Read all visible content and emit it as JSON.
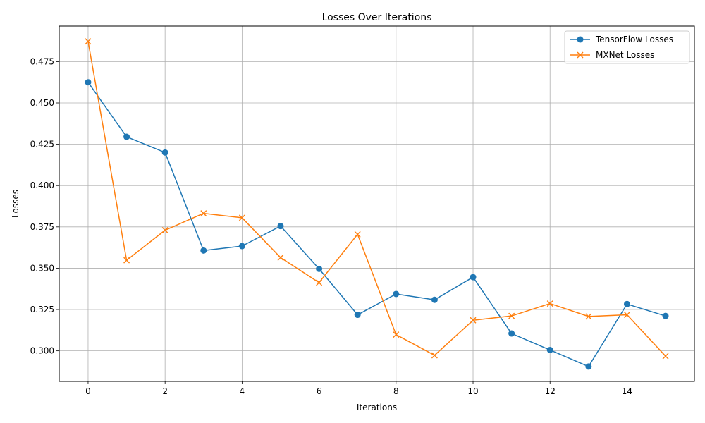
{
  "chart_data": {
    "type": "line",
    "title": "Losses Over Iterations",
    "xlabel": "Iterations",
    "ylabel": "Losses",
    "xlim": [
      -0.75,
      15.75
    ],
    "ylim": [
      0.2815,
      0.4965
    ],
    "x_ticks": [
      0,
      2,
      4,
      6,
      8,
      10,
      12,
      14
    ],
    "y_ticks": [
      0.3,
      0.325,
      0.35,
      0.375,
      0.4,
      0.425,
      0.45,
      0.475
    ],
    "y_tick_labels": [
      "0.300",
      "0.325",
      "0.350",
      "0.375",
      "0.400",
      "0.425",
      "0.450",
      "0.475"
    ],
    "grid": true,
    "legend_position": "top-right",
    "x": [
      0,
      1,
      2,
      3,
      4,
      5,
      6,
      7,
      8,
      9,
      10,
      11,
      12,
      13,
      14,
      15
    ],
    "series": [
      {
        "name": "TensorFlow Losses",
        "color": "#1f77b4",
        "marker": "circle",
        "values": [
          0.4625,
          0.4295,
          0.42,
          0.3607,
          0.3634,
          0.3755,
          0.3496,
          0.3218,
          0.3344,
          0.3309,
          0.3446,
          0.3105,
          0.3005,
          0.2905,
          0.3283,
          0.3211
        ]
      },
      {
        "name": "MXNet Losses",
        "color": "#ff7f0e",
        "marker": "x",
        "values": [
          0.4872,
          0.3548,
          0.373,
          0.3832,
          0.3805,
          0.3564,
          0.3413,
          0.3705,
          0.3098,
          0.2973,
          0.3185,
          0.3211,
          0.3286,
          0.3208,
          0.3218,
          0.2968
        ]
      }
    ]
  }
}
